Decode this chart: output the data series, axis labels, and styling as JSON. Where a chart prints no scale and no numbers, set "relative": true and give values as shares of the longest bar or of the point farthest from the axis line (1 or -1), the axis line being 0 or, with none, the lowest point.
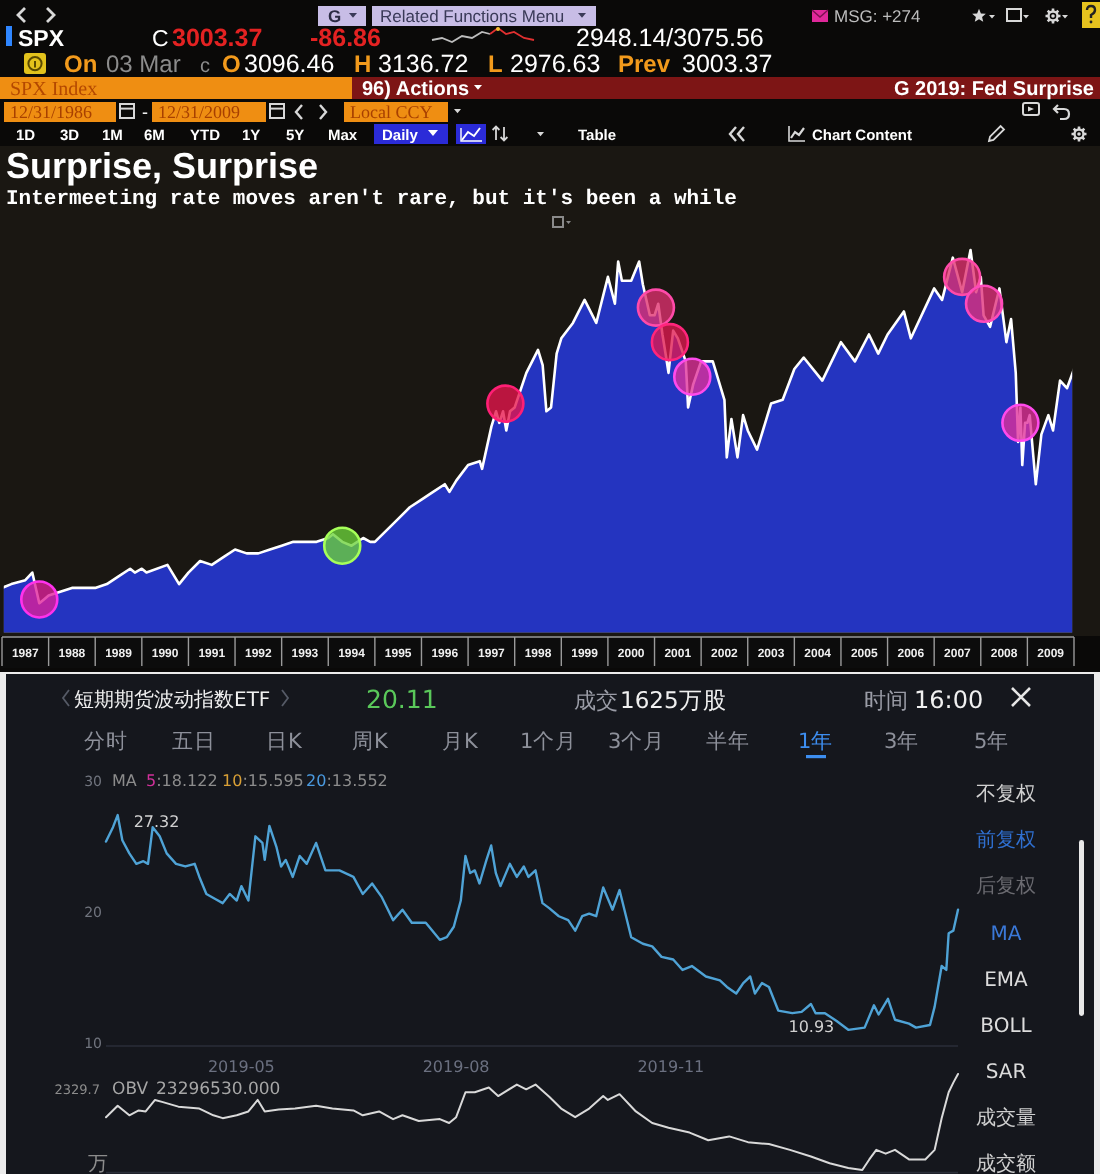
{
  "chart_data": [
    {
      "type": "other",
      "annotations": [
        "G",
        "Related Functions Menu",
        "MSG: +274",
        "SPX",
        "C",
        "3003.37",
        "-86.86",
        "2948.14/3075.56",
        "On",
        "03 Mar",
        "c",
        "O",
        "3096.46",
        "H",
        "3136.72",
        "L",
        "2976.63",
        "Prev",
        "3003.37",
        "SPX Index",
        "96) Actions",
        "G 2019: Fed Surprise",
        "12/31/1986",
        "-",
        "12/31/2009",
        "Local CCY",
        "1D",
        "3D",
        "1M",
        "6M",
        "YTD",
        "1Y",
        "5Y",
        "Max",
        "Daily",
        "Table",
        "Chart Content"
      ]
    },
    {
      "type": "area",
      "title": "Surprise, Surprise",
      "subtitle": "Intermeeting rate moves aren't rare, but it's been a while",
      "relative": true,
      "xlim": [
        1987,
        2010
      ],
      "xticks": [
        {
          "value": 1987.5,
          "label": "1987"
        },
        {
          "value": 1988.5,
          "label": "1988"
        },
        {
          "value": 1989.5,
          "label": "1989"
        },
        {
          "value": 1990.5,
          "label": "1990"
        },
        {
          "value": 1991.5,
          "label": "1991"
        },
        {
          "value": 1992.5,
          "label": "1992"
        },
        {
          "value": 1993.5,
          "label": "1993"
        },
        {
          "value": 1994.5,
          "label": "1994"
        },
        {
          "value": 1995.5,
          "label": "1995"
        },
        {
          "value": 1996.5,
          "label": "1996"
        },
        {
          "value": 1997.5,
          "label": "1997"
        },
        {
          "value": 1998.5,
          "label": "1998"
        },
        {
          "value": 1999.5,
          "label": "1999"
        },
        {
          "value": 2000.5,
          "label": "2000"
        },
        {
          "value": 2001.5,
          "label": "2001"
        },
        {
          "value": 2002.5,
          "label": "2002"
        },
        {
          "value": 2003.5,
          "label": "2003"
        },
        {
          "value": 2004.5,
          "label": "2004"
        },
        {
          "value": 2005.5,
          "label": "2005"
        },
        {
          "value": 2006.5,
          "label": "2006"
        },
        {
          "value": 2007.5,
          "label": "2007"
        },
        {
          "value": 2008.5,
          "label": "2008"
        },
        {
          "value": 2009.5,
          "label": "2009"
        }
      ],
      "series": [
        {
          "type": "area",
          "color": "#2434c0",
          "x": [
            1987.0,
            1987.2,
            1987.5,
            1987.65,
            1987.8,
            1987.9,
            1988.0,
            1988.25,
            1988.5,
            1988.75,
            1989.0,
            1989.25,
            1989.5,
            1989.75,
            1989.85,
            1990.0,
            1990.1,
            1990.55,
            1990.8,
            1991.0,
            1991.25,
            1991.5,
            1991.75,
            1992.0,
            1992.25,
            1992.5,
            1992.75,
            1993.0,
            1993.25,
            1993.5,
            1993.75,
            1994.0,
            1994.1,
            1994.3,
            1994.5,
            1994.75,
            1994.9,
            1995.0,
            1995.25,
            1995.5,
            1995.75,
            1996.0,
            1996.25,
            1996.5,
            1996.6,
            1996.75,
            1997.0,
            1997.25,
            1997.3,
            1997.5,
            1997.6,
            1997.67,
            1997.75,
            1997.82,
            1997.9,
            1998.0,
            1998.25,
            1998.5,
            1998.6,
            1998.68,
            1998.78,
            1998.9,
            1999.0,
            1999.25,
            1999.5,
            1999.75,
            2000.0,
            2000.15,
            2000.22,
            2000.3,
            2000.5,
            2000.67,
            2000.75,
            2000.9,
            2001.0,
            2001.08,
            2001.17,
            2001.25,
            2001.3,
            2001.4,
            2001.5,
            2001.67,
            2001.72,
            2001.83,
            2002.0,
            2002.25,
            2002.5,
            2002.55,
            2002.65,
            2002.78,
            2002.9,
            2003.0,
            2003.2,
            2003.5,
            2003.75,
            2004.0,
            2004.2,
            2004.6,
            2005.0,
            2005.3,
            2005.6,
            2005.8,
            2006.0,
            2006.35,
            2006.5,
            2007.0,
            2007.17,
            2007.4,
            2007.6,
            2007.78,
            2007.9,
            2008.0,
            2008.06,
            2008.2,
            2008.4,
            2008.55,
            2008.65,
            2008.75,
            2008.8,
            2008.85,
            2008.89,
            2008.95,
            2009.0,
            2009.05,
            2009.18,
            2009.3,
            2009.45,
            2009.55,
            2009.7,
            2009.85,
            2010.0
          ],
          "values": [
            0.12,
            0.13,
            0.14,
            0.16,
            0.08,
            0.09,
            0.1,
            0.11,
            0.12,
            0.12,
            0.12,
            0.13,
            0.15,
            0.17,
            0.16,
            0.17,
            0.16,
            0.18,
            0.13,
            0.16,
            0.19,
            0.18,
            0.2,
            0.22,
            0.21,
            0.21,
            0.22,
            0.23,
            0.24,
            0.24,
            0.24,
            0.25,
            0.26,
            0.24,
            0.23,
            0.25,
            0.24,
            0.24,
            0.27,
            0.3,
            0.33,
            0.35,
            0.37,
            0.39,
            0.37,
            0.4,
            0.44,
            0.45,
            0.43,
            0.54,
            0.58,
            0.55,
            0.58,
            0.53,
            0.58,
            0.59,
            0.68,
            0.74,
            0.7,
            0.58,
            0.59,
            0.73,
            0.77,
            0.81,
            0.87,
            0.81,
            0.93,
            0.86,
            0.97,
            0.92,
            0.92,
            0.97,
            0.91,
            0.83,
            0.83,
            0.86,
            0.78,
            0.72,
            0.68,
            0.79,
            0.77,
            0.71,
            0.59,
            0.65,
            0.71,
            0.71,
            0.61,
            0.46,
            0.56,
            0.46,
            0.57,
            0.53,
            0.48,
            0.6,
            0.61,
            0.69,
            0.72,
            0.66,
            0.76,
            0.71,
            0.78,
            0.73,
            0.78,
            0.84,
            0.77,
            0.9,
            0.87,
            0.98,
            0.89,
            1.0,
            0.89,
            0.93,
            0.83,
            0.8,
            0.9,
            0.76,
            0.82,
            0.68,
            0.5,
            0.59,
            0.44,
            0.55,
            0.55,
            0.57,
            0.39,
            0.52,
            0.57,
            0.53,
            0.66,
            0.64,
            0.69
          ]
        },
        {
          "type": "scatter",
          "marker": "circle",
          "x": [
            1987.8,
            1994.3,
            1997.8,
            2001.03,
            2001.33,
            2001.81,
            2007.6,
            2008.07,
            2008.85
          ],
          "values": [
            0.09,
            0.23,
            0.6,
            0.85,
            0.76,
            0.67,
            0.93,
            0.86,
            0.55
          ],
          "colors": [
            "#e0209a",
            "#6cd23a",
            "#e8144c",
            "#e0306e",
            "#e01850",
            "#e0309a",
            "#e0306e",
            "#e0307a",
            "#e0309a"
          ]
        }
      ]
    },
    {
      "type": "other",
      "annotations": [
        "短期期货波动指数ETF",
        "20.11",
        "成交",
        "1625万股",
        "时间",
        "16:00",
        "分时",
        "五日",
        "日K",
        "周K",
        "月K",
        "1个月",
        "3个月",
        "半年",
        "1年",
        "3年",
        "5年",
        "不复权",
        "前复权",
        "后复权",
        "MA",
        "EMA",
        "BOLL",
        "SAR",
        "成交量",
        "成交额"
      ]
    },
    {
      "type": "line",
      "xlim": [
        "2019-03-04",
        "2020-03-03"
      ],
      "xticks": [
        "2019-05",
        "2019-08",
        "2019-11"
      ],
      "ylim": [
        10,
        30
      ],
      "yticks": [
        10,
        20,
        30
      ],
      "x": [
        "2019-03-04",
        "2019-03-07",
        "2019-03-09",
        "2019-03-11",
        "2019-03-14",
        "2019-03-17",
        "2019-03-20",
        "2019-03-22",
        "2019-03-24",
        "2019-03-27",
        "2019-03-30",
        "2019-04-03",
        "2019-04-07",
        "2019-04-11",
        "2019-04-13",
        "2019-04-16",
        "2019-04-20",
        "2019-04-23",
        "2019-04-26",
        "2019-04-29",
        "2019-05-01",
        "2019-05-04",
        "2019-05-07",
        "2019-05-10",
        "2019-05-11",
        "2019-05-13",
        "2019-05-16",
        "2019-05-18",
        "2019-05-20",
        "2019-05-23",
        "2019-05-26",
        "2019-05-29",
        "2019-06-02",
        "2019-06-06",
        "2019-06-12",
        "2019-06-18",
        "2019-06-22",
        "2019-06-26",
        "2019-06-30",
        "2019-07-05",
        "2019-07-09",
        "2019-07-13",
        "2019-07-19",
        "2019-07-25",
        "2019-07-28",
        "2019-07-31",
        "2019-08-03",
        "2019-08-05",
        "2019-08-07",
        "2019-08-09",
        "2019-08-11",
        "2019-08-14",
        "2019-08-16",
        "2019-08-18",
        "2019-08-20",
        "2019-08-24",
        "2019-08-27",
        "2019-08-30",
        "2019-09-01",
        "2019-09-04",
        "2019-09-07",
        "2019-09-10",
        "2019-09-14",
        "2019-09-18",
        "2019-09-21",
        "2019-09-24",
        "2019-09-27",
        "2019-09-30",
        "2019-10-03",
        "2019-10-07",
        "2019-10-10",
        "2019-10-15",
        "2019-10-20",
        "2019-10-24",
        "2019-10-28",
        "2019-11-02",
        "2019-11-06",
        "2019-11-10",
        "2019-11-16",
        "2019-11-22",
        "2019-11-25",
        "2019-11-29",
        "2019-12-02",
        "2019-12-05",
        "2019-12-07",
        "2019-12-10",
        "2019-12-13",
        "2019-12-17",
        "2019-12-23",
        "2019-12-27",
        "2019-12-31",
        "2020-01-02",
        "2020-01-06",
        "2020-01-11",
        "2020-01-16",
        "2020-01-23",
        "2020-01-27",
        "2020-01-29",
        "2020-02-02",
        "2020-02-05",
        "2020-02-11",
        "2020-02-14",
        "2020-02-20",
        "2020-02-22",
        "2020-02-25",
        "2020-02-27",
        "2020-02-28",
        "2020-03-01",
        "2020-03-03"
      ],
      "series": [
        {
          "color": "#4fa3d6",
          "values": [
            25.3,
            26.4,
            27.32,
            25.4,
            24.4,
            23.6,
            23.8,
            23.6,
            26.4,
            25.7,
            24.4,
            23.6,
            23.4,
            23.6,
            22.6,
            21.3,
            20.9,
            20.6,
            21.3,
            20.8,
            21.9,
            20.8,
            25.7,
            25.2,
            23.9,
            26.5,
            24.9,
            23.4,
            23.9,
            22.6,
            24.2,
            23.6,
            25.2,
            23.1,
            23.1,
            22.6,
            21.3,
            22.1,
            21.1,
            19.3,
            20.1,
            19.1,
            19.1,
            17.8,
            18.0,
            18.8,
            20.8,
            24.2,
            22.9,
            23.1,
            22.1,
            23.9,
            25.0,
            22.9,
            21.9,
            23.6,
            22.6,
            23.4,
            22.6,
            23.1,
            20.6,
            20.2,
            19.6,
            19.3,
            18.5,
            19.6,
            19.8,
            19.6,
            21.8,
            20.1,
            21.6,
            18.0,
            17.5,
            17.3,
            16.5,
            16.3,
            15.5,
            15.8,
            15.0,
            14.7,
            14.2,
            13.7,
            14.5,
            15.0,
            13.7,
            14.5,
            14.2,
            12.4,
            12.2,
            12.3,
            12.9,
            12.2,
            12.2,
            11.6,
            10.93,
            11.1,
            12.8,
            12.1,
            13.3,
            11.7,
            11.4,
            11.1,
            11.3,
            12.7,
            15.8,
            15.5,
            18.3,
            18.5,
            20.1
          ]
        }
      ],
      "annotations": [
        {
          "text": "27.32",
          "x": "2019-03-09",
          "y": 27.32
        },
        {
          "text": "10.93",
          "x": "2020-01-16",
          "y": 10.93
        },
        "MA",
        "5:18.122",
        "10:15.595",
        "20:13.552"
      ]
    },
    {
      "type": "line",
      "relative": true,
      "tick_labels": false,
      "xlim": [
        "2019-03-04",
        "2020-03-03"
      ],
      "xticks": [
        "2019-05",
        "2019-08",
        "2019-11"
      ],
      "x": [
        "2019-03-04",
        "2019-03-09",
        "2019-03-14",
        "2019-03-18",
        "2019-03-21",
        "2019-03-25",
        "2019-03-28",
        "2019-04-04",
        "2019-04-13",
        "2019-04-19",
        "2019-04-23",
        "2019-04-29",
        "2019-05-04",
        "2019-05-08",
        "2019-05-11",
        "2019-05-17",
        "2019-05-24",
        "2019-06-02",
        "2019-06-09",
        "2019-06-18",
        "2019-06-22",
        "2019-06-29",
        "2019-07-05",
        "2019-07-09",
        "2019-07-16",
        "2019-07-25",
        "2019-07-29",
        "2019-08-01",
        "2019-08-05",
        "2019-08-09",
        "2019-08-15",
        "2019-08-19",
        "2019-08-27",
        "2019-08-31",
        "2019-09-04",
        "2019-09-10",
        "2019-09-15",
        "2019-09-21",
        "2019-09-27",
        "2019-10-03",
        "2019-10-05",
        "2019-10-10",
        "2019-10-17",
        "2019-10-24",
        "2019-10-31",
        "2019-11-09",
        "2019-11-17",
        "2019-11-26",
        "2019-12-04",
        "2019-12-13",
        "2019-12-22",
        "2019-12-31",
        "2020-01-08",
        "2020-01-16",
        "2020-01-22",
        "2020-01-25",
        "2020-01-28",
        "2020-02-01",
        "2020-02-05",
        "2020-02-11",
        "2020-02-18",
        "2020-02-22",
        "2020-02-25",
        "2020-02-28",
        "2020-03-01",
        "2020-03-03"
      ],
      "series": [
        {
          "color": "#d9d9d9",
          "values": [
            0.55,
            0.67,
            0.57,
            0.62,
            0.61,
            0.73,
            0.71,
            0.66,
            0.64,
            0.57,
            0.54,
            0.57,
            0.61,
            0.73,
            0.61,
            0.63,
            0.64,
            0.67,
            0.64,
            0.62,
            0.57,
            0.61,
            0.53,
            0.57,
            0.51,
            0.53,
            0.49,
            0.55,
            0.81,
            0.81,
            0.86,
            0.77,
            0.89,
            0.84,
            0.89,
            0.76,
            0.64,
            0.55,
            0.64,
            0.77,
            0.73,
            0.79,
            0.61,
            0.49,
            0.44,
            0.39,
            0.31,
            0.35,
            0.29,
            0.27,
            0.21,
            0.14,
            0.07,
            0.02,
            0.0,
            0.11,
            0.21,
            0.17,
            0.21,
            0.11,
            0.11,
            0.21,
            0.54,
            0.81,
            0.91,
            1.0
          ]
        }
      ],
      "annotations": [
        "2329.7",
        "OBV",
        "23296530.000",
        "万"
      ]
    }
  ]
}
